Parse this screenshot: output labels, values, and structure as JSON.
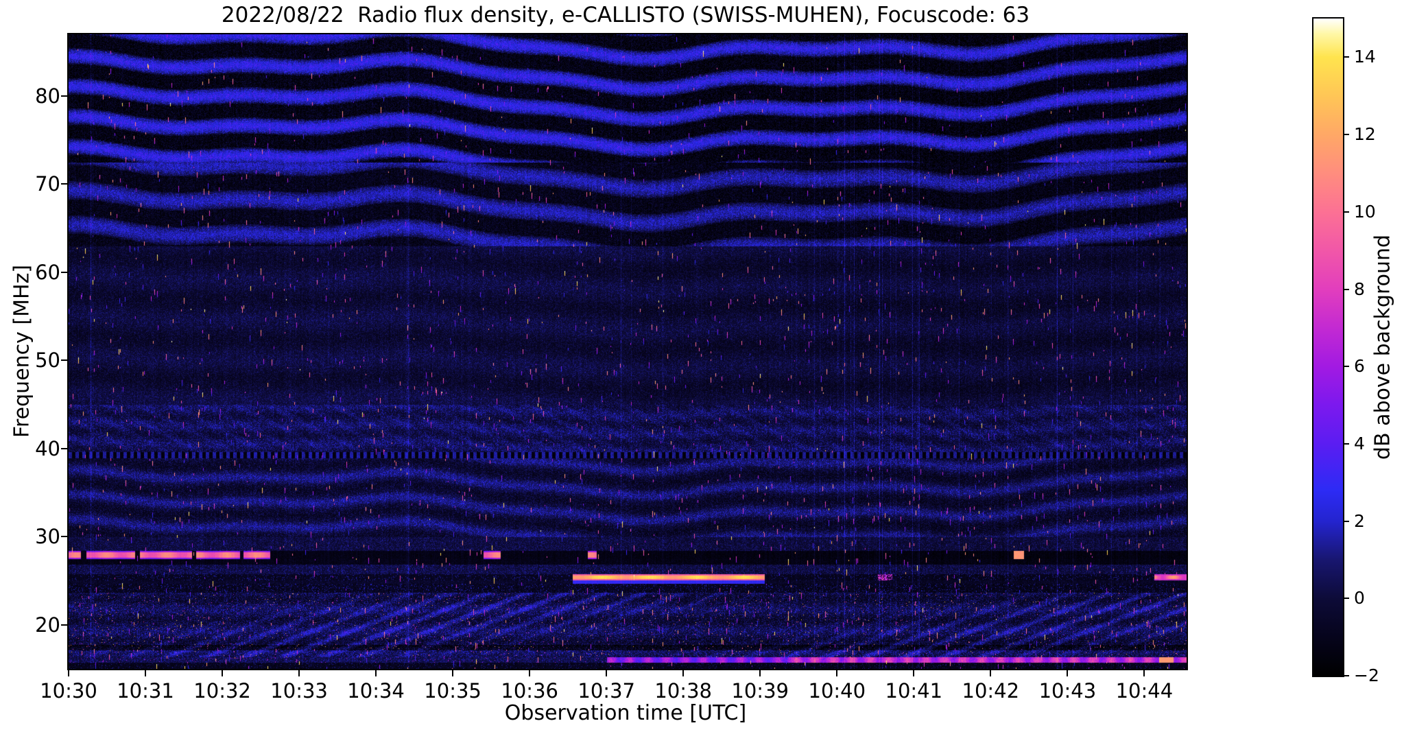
{
  "chart_data": {
    "type": "heatmap",
    "title": "2022/08/22  Radio flux density, e-CALLISTO (SWISS-MUHEN), Focuscode: 63",
    "xlabel": "Observation time [UTC]",
    "ylabel": "Frequency [MHz]",
    "x_ticks": [
      "10:30",
      "10:31",
      "10:32",
      "10:33",
      "10:34",
      "10:35",
      "10:36",
      "10:37",
      "10:38",
      "10:39",
      "10:40",
      "10:41",
      "10:42",
      "10:43",
      "10:44"
    ],
    "x_minutes_span": 14.55,
    "y_ticks": [
      80,
      70,
      60,
      50,
      40,
      30,
      20
    ],
    "freq_range_mhz": [
      15,
      87
    ],
    "grid": false,
    "colorbar": {
      "label": "dB above background",
      "min": -2,
      "max": 15,
      "tick_values": [
        14,
        12,
        10,
        8,
        6,
        4,
        2,
        0,
        -2
      ],
      "tick_labels": [
        "14",
        "12",
        "10",
        "8",
        "6",
        "4",
        "2",
        "0",
        "−2"
      ],
      "stops": [
        {
          "v": -2,
          "c": "#000000"
        },
        {
          "v": -1,
          "c": "#06041c"
        },
        {
          "v": 0,
          "c": "#0d0b38"
        },
        {
          "v": 1,
          "c": "#181670"
        },
        {
          "v": 2,
          "c": "#2424cf"
        },
        {
          "v": 2.8,
          "c": "#2d2bf5"
        },
        {
          "v": 4,
          "c": "#5b1df2"
        },
        {
          "v": 5,
          "c": "#7c19ee"
        },
        {
          "v": 6,
          "c": "#a21ae2"
        },
        {
          "v": 7,
          "c": "#c32ad2"
        },
        {
          "v": 8,
          "c": "#e23ebd"
        },
        {
          "v": 9,
          "c": "#f157a8"
        },
        {
          "v": 10,
          "c": "#fc7194"
        },
        {
          "v": 11,
          "c": "#ff8d7e"
        },
        {
          "v": 12,
          "c": "#ffa866"
        },
        {
          "v": 13,
          "c": "#ffc656"
        },
        {
          "v": 14,
          "c": "#ffe44e"
        },
        {
          "v": 14.6,
          "c": "#fff7a6"
        },
        {
          "v": 15,
          "c": "#ffffff"
        }
      ]
    },
    "features": [
      {
        "name": "narrowband-carrier",
        "freq_mhz": 27.8,
        "start_min": 0.0,
        "end_min": 2.62,
        "peak_db": 10,
        "color": "#ff9aa2"
      },
      {
        "name": "carrier-blips",
        "freq_mhz": 27.8,
        "times_min": [
          5.45,
          5.56,
          6.81
        ],
        "peak_db": 8
      },
      {
        "name": "carrier-dots",
        "freq_mhz": 27.7,
        "start_min": 12.3,
        "end_min": 12.43,
        "peak_db": 11
      },
      {
        "name": "narrowband-carrier",
        "freq_mhz": 25.4,
        "start_min": 6.56,
        "end_min": 9.06,
        "peak_db": 13,
        "color": "#ffc08a"
      },
      {
        "name": "carrier-segment",
        "freq_mhz": 25.6,
        "start_min": 14.13,
        "end_min": 14.55,
        "peak_db": 10
      },
      {
        "name": "carrier-sparse",
        "freq_mhz": 25.4,
        "start_min": 10.53,
        "end_min": 10.72,
        "peak_db": 7
      },
      {
        "name": "bottom-broadband",
        "freq_mhz": 15.9,
        "start_min": 7.0,
        "end_min": 14.55,
        "peak_db": 8,
        "intense_from_min": 9.35,
        "blob_min": [
          14.19,
          14.38
        ]
      }
    ],
    "texture_regions": [
      {
        "name": "wavy-horizontal-interference-bands",
        "freq_mhz": [
          63,
          87
        ]
      },
      {
        "name": "faint-noise-background",
        "freq_mhz": [
          45,
          63
        ]
      },
      {
        "name": "mottled-wavy-bands",
        "freq_mhz": [
          30,
          45
        ]
      },
      {
        "name": "dotted-interference-line",
        "freq_mhz": [
          38.9,
          39.6
        ]
      },
      {
        "name": "dark-quiet-band",
        "freq_mhz": [
          26.9,
          28.4
        ]
      },
      {
        "name": "dark-quiet-band",
        "freq_mhz": [
          23.7,
          24.7
        ]
      },
      {
        "name": "shortwave-clutter-diagonal-texture",
        "freq_mhz": [
          16.3,
          23.7
        ]
      }
    ]
  }
}
